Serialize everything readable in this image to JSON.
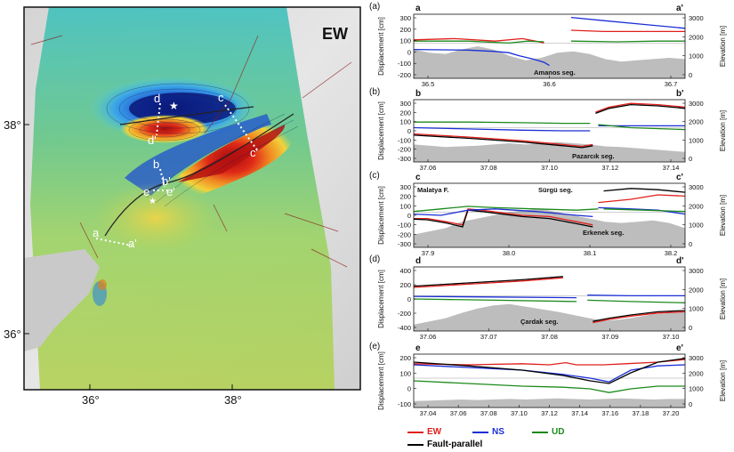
{
  "map": {
    "component_label": "EW",
    "lat_labels": [
      "38°",
      "36°"
    ],
    "lon_labels": [
      "36°",
      "38°"
    ],
    "profile_markers": [
      "a",
      "a'",
      "b",
      "b'",
      "c",
      "c'",
      "d",
      "d'",
      "e",
      "e'"
    ]
  },
  "profiles": [
    {
      "panel": "(a)",
      "start": "a",
      "end": "a'",
      "x_ticks": [
        "36.5",
        "36.6",
        "36.7"
      ],
      "y_left_ticks": [
        "300",
        "200",
        "100",
        "0",
        "-100",
        "-200"
      ],
      "y_right_ticks": [
        "3000",
        "2000",
        "1000",
        "0"
      ],
      "annotation": "Amanos seg."
    },
    {
      "panel": "(b)",
      "start": "b",
      "end": "b'",
      "x_ticks": [
        "37.06",
        "37.08",
        "37.10",
        "37.12",
        "37.14"
      ],
      "y_left_ticks": [
        "300",
        "200",
        "100",
        "0",
        "-100",
        "-200",
        "-300"
      ],
      "y_right_ticks": [
        "3000",
        "2000",
        "1000",
        "0"
      ],
      "annotation": "Pazarcık seg."
    },
    {
      "panel": "(c)",
      "start": "c",
      "end": "c'",
      "x_ticks": [
        "37.9",
        "38.0",
        "38.1",
        "38.2"
      ],
      "y_left_ticks": [
        "300",
        "200",
        "100",
        "0",
        "-100",
        "-200",
        "-300"
      ],
      "y_right_ticks": [
        "3000",
        "2000",
        "1000",
        "0"
      ],
      "annotation": "Malatya F.",
      "annotation2": "Sürgü seg.",
      "annotation3": "Erkenek seg."
    },
    {
      "panel": "(d)",
      "start": "d",
      "end": "d'",
      "x_ticks": [
        "37.06",
        "37.07",
        "37.08",
        "37.09",
        "37.10"
      ],
      "y_left_ticks": [
        "400",
        "200",
        "0",
        "-200",
        "-400"
      ],
      "y_right_ticks": [
        "3000",
        "2000",
        "1000",
        "0"
      ],
      "annotation": "Çardak seg."
    },
    {
      "panel": "(e)",
      "start": "e",
      "end": "e'",
      "x_ticks": [
        "37.04",
        "37.06",
        "37.08",
        "37.10",
        "37.12",
        "37.14",
        "37.16",
        "37.18",
        "37.20"
      ],
      "y_left_ticks": [
        "200",
        "100",
        "0",
        "-100"
      ],
      "y_right_ticks": [
        "3000",
        "2000",
        "1000",
        "0"
      ]
    }
  ],
  "y_left_title": "Displacement [cm]",
  "y_right_title": "Elevation [m]",
  "legend": {
    "ew": "EW",
    "ns": "NS",
    "ud": "UD",
    "fp": "Fault-parallel"
  },
  "colors": {
    "ew": "#e0201c",
    "ns": "#1a2ed6",
    "ud": "#1c8a1c",
    "fp": "#000000",
    "elev": "#bdbdbd"
  }
}
